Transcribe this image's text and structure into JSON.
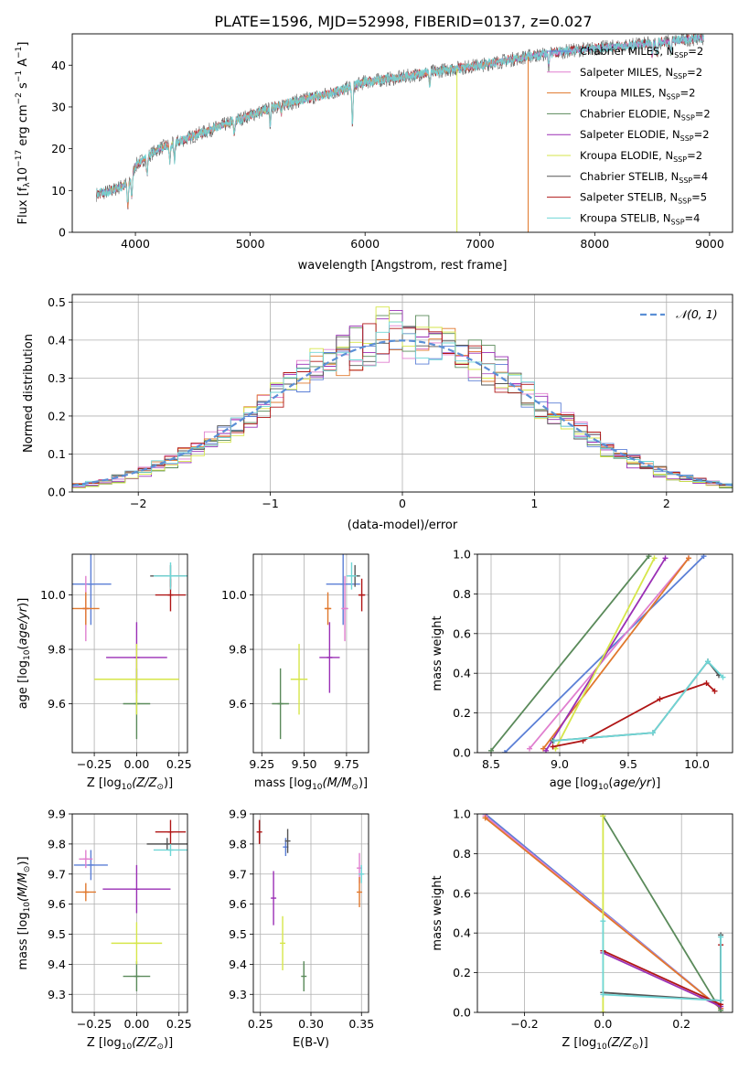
{
  "figure_title": "PLATE=1596, MJD=52998, FIBERID=0137, z=0.027",
  "colors": {
    "Chabrier MILES": "#5b7fd6",
    "Salpeter MILES": "#e07fcf",
    "Kroupa MILES": "#e0782d",
    "Chabrier ELODIE": "#5a8a5a",
    "Salpeter ELODIE": "#9a2fb5",
    "Kroupa ELODIE": "#d6e64a",
    "Chabrier STELIB": "#555555",
    "Salpeter STELIB": "#b01616",
    "Kroupa STELIB": "#6fd6d6",
    "normal": "#5b8fd6"
  },
  "chart_data": [
    {
      "id": "spectrum",
      "type": "line",
      "xlabel": "wavelength [Angstrom, rest frame]",
      "ylabel_parts": [
        "Flux [f",
        "λ",
        "10",
        "−17",
        " erg cm",
        "−2",
        " s",
        "−1",
        " A",
        "−1",
        "]"
      ],
      "xlim": [
        3450,
        9200
      ],
      "ylim": [
        0,
        47.5
      ],
      "xticks": [
        4000,
        5000,
        6000,
        7000,
        8000,
        9000
      ],
      "yticks": [
        0,
        10,
        20,
        30,
        40
      ],
      "legend_position": "right",
      "legend": [
        {
          "name": "Chabrier MILES, N",
          "sub": "SSP",
          "tail": "=2",
          "color_key": "Chabrier MILES"
        },
        {
          "name": "Salpeter MILES, N",
          "sub": "SSP",
          "tail": "=2",
          "color_key": "Salpeter MILES"
        },
        {
          "name": "Kroupa MILES, N",
          "sub": "SSP",
          "tail": "=2",
          "color_key": "Kroupa MILES"
        },
        {
          "name": "Chabrier ELODIE, N",
          "sub": "SSP",
          "tail": "=2",
          "color_key": "Chabrier ELODIE"
        },
        {
          "name": "Salpeter ELODIE, N",
          "sub": "SSP",
          "tail": "=2",
          "color_key": "Salpeter ELODIE"
        },
        {
          "name": "Kroupa ELODIE, N",
          "sub": "SSP",
          "tail": "=2",
          "color_key": "Kroupa ELODIE"
        },
        {
          "name": "Chabrier STELIB, N",
          "sub": "SSP",
          "tail": "=4",
          "color_key": "Chabrier STELIB"
        },
        {
          "name": "Salpeter STELIB, N",
          "sub": "SSP",
          "tail": "=5",
          "color_key": "Salpeter STELIB"
        },
        {
          "name": "Kroupa STELIB, N",
          "sub": "SSP",
          "tail": "=4",
          "color_key": "Kroupa STELIB"
        }
      ],
      "continuum": [
        [
          3650,
          9
        ],
        [
          3800,
          10
        ],
        [
          3950,
          12
        ],
        [
          4000,
          16
        ],
        [
          4200,
          20
        ],
        [
          4500,
          23
        ],
        [
          4800,
          26
        ],
        [
          5000,
          28
        ],
        [
          5200,
          30
        ],
        [
          5500,
          32
        ],
        [
          5800,
          34
        ],
        [
          6000,
          36
        ],
        [
          6300,
          37
        ],
        [
          6600,
          38.5
        ],
        [
          7000,
          40
        ],
        [
          7400,
          42
        ],
        [
          7800,
          43.5
        ],
        [
          8200,
          44.5
        ],
        [
          8600,
          45.5
        ],
        [
          8900,
          46.5
        ]
      ],
      "absorption_lines": [
        [
          3934,
          6
        ],
        [
          3969,
          5
        ],
        [
          4102,
          4
        ],
        [
          4300,
          4
        ],
        [
          4340,
          4
        ],
        [
          4861,
          3
        ],
        [
          5175,
          4
        ],
        [
          5270,
          2
        ],
        [
          5890,
          9
        ],
        [
          6563,
          3
        ],
        [
          7600,
          3
        ],
        [
          8500,
          3
        ],
        [
          8542,
          3
        ],
        [
          8662,
          3
        ]
      ],
      "drops": [
        {
          "color_key": "Kroupa ELODIE",
          "x": 6800
        },
        {
          "color_key": "Kroupa MILES",
          "x": 7420
        }
      ],
      "data_end": {
        "Chabrier MILES": 7400,
        "Kroupa MILES": 7420,
        "Kroupa ELODIE": 6800
      }
    },
    {
      "id": "residual-histogram",
      "type": "bar",
      "xlabel": "(data-model)/error",
      "ylabel": "Normed distribution",
      "xlim": [
        -2.5,
        2.5
      ],
      "ylim": [
        0,
        0.52
      ],
      "xticks": [
        -2,
        -1,
        0,
        1,
        2
      ],
      "yticks": [
        0.0,
        0.1,
        0.2,
        0.3,
        0.4,
        0.5
      ],
      "bin_width": 0.1,
      "normal_curve_label": "𝒩(0, 1)",
      "normal_curve": {
        "mean": 0,
        "sigma": 1
      },
      "legend_position": "top-right"
    },
    {
      "id": "age-vs-Z",
      "type": "scatter",
      "xlabel_pre": "Z [log",
      "xlabel_sub": "10",
      "xlabel_post": "(Z/Z",
      "xlabel_sun": "⊙",
      "xlabel_end": ")]",
      "ylabel": "age  [log10(age/yr)]",
      "xlim": [
        -0.38,
        0.3
      ],
      "ylim": [
        9.42,
        10.15
      ],
      "xticks": [
        -0.25,
        0.0,
        0.25
      ],
      "xtick_labels": [
        "−0.25",
        "0.00",
        "0.25"
      ],
      "yticks": [
        9.6,
        9.8,
        10.0
      ],
      "points": [
        {
          "color_key": "Chabrier MILES",
          "x": -0.27,
          "y": 10.04,
          "xerr": 0.12,
          "yerr": 0.15
        },
        {
          "color_key": "Salpeter MILES",
          "x": -0.3,
          "y": 9.95,
          "xerr": 0.02,
          "yerr": 0.12
        },
        {
          "color_key": "Kroupa MILES",
          "x": -0.3,
          "y": 9.95,
          "xerr": 0.08,
          "yerr": 0.06
        },
        {
          "color_key": "Chabrier ELODIE",
          "x": 0.0,
          "y": 9.6,
          "xerr": 0.08,
          "yerr": 0.13
        },
        {
          "color_key": "Salpeter ELODIE",
          "x": 0.0,
          "y": 9.77,
          "xerr": 0.18,
          "yerr": 0.13
        },
        {
          "color_key": "Kroupa ELODIE",
          "x": 0.0,
          "y": 9.69,
          "xerr": 0.25,
          "yerr": 0.13
        },
        {
          "color_key": "Chabrier STELIB",
          "x": 0.2,
          "y": 10.07,
          "xerr": 0.12,
          "yerr": 0.04
        },
        {
          "color_key": "Salpeter STELIB",
          "x": 0.2,
          "y": 10.0,
          "xerr": 0.09,
          "yerr": 0.06
        },
        {
          "color_key": "Kroupa STELIB",
          "x": 0.2,
          "y": 10.07,
          "xerr": 0.1,
          "yerr": 0.05
        }
      ]
    },
    {
      "id": "age-vs-mass",
      "type": "scatter",
      "xlabel_pre": "mass [log",
      "xlabel_sub": "10",
      "xlabel_post": "(M/M",
      "xlabel_sun": "⊙",
      "xlabel_end": ")]",
      "xlim": [
        9.2,
        9.88
      ],
      "ylim": [
        9.42,
        10.15
      ],
      "xticks": [
        9.25,
        9.5,
        9.75
      ],
      "xtick_labels": [
        "9.25",
        "9.50",
        "9.75"
      ],
      "yticks": [
        9.6,
        9.8,
        10.0
      ],
      "points": [
        {
          "color_key": "Chabrier MILES",
          "x": 9.73,
          "y": 10.04,
          "xerr": 0.1,
          "yerr": 0.15
        },
        {
          "color_key": "Salpeter MILES",
          "x": 9.74,
          "y": 9.95,
          "xerr": 0.02,
          "yerr": 0.12
        },
        {
          "color_key": "Kroupa MILES",
          "x": 9.64,
          "y": 9.95,
          "xerr": 0.02,
          "yerr": 0.06
        },
        {
          "color_key": "Chabrier ELODIE",
          "x": 9.36,
          "y": 9.6,
          "xerr": 0.05,
          "yerr": 0.13
        },
        {
          "color_key": "Salpeter ELODIE",
          "x": 9.65,
          "y": 9.77,
          "xerr": 0.06,
          "yerr": 0.13
        },
        {
          "color_key": "Kroupa ELODIE",
          "x": 9.47,
          "y": 9.69,
          "xerr": 0.05,
          "yerr": 0.13
        },
        {
          "color_key": "Chabrier STELIB",
          "x": 9.8,
          "y": 10.07,
          "xerr": 0.03,
          "yerr": 0.04
        },
        {
          "color_key": "Salpeter STELIB",
          "x": 9.84,
          "y": 10.0,
          "xerr": 0.02,
          "yerr": 0.06
        },
        {
          "color_key": "Kroupa STELIB",
          "x": 9.78,
          "y": 10.07,
          "xerr": 0.03,
          "yerr": 0.05
        }
      ]
    },
    {
      "id": "weight-vs-age",
      "type": "line",
      "xlabel": "age  [log10(age/yr)]",
      "ylabel": "mass weight",
      "xlim": [
        8.4,
        10.26
      ],
      "ylim": [
        0,
        1.0
      ],
      "xticks": [
        8.5,
        9.0,
        9.5,
        10.0
      ],
      "xtick_labels": [
        "8.5",
        "9.0",
        "9.5",
        "10.0"
      ],
      "yticks": [
        0.0,
        0.2,
        0.4,
        0.6,
        0.8,
        1.0
      ],
      "series": [
        {
          "color_key": "Chabrier MILES",
          "points": [
            [
              8.6,
              0.0
            ],
            [
              10.05,
              0.99
            ]
          ]
        },
        {
          "color_key": "Salpeter MILES",
          "points": [
            [
              8.78,
              0.02
            ],
            [
              9.94,
              0.98
            ]
          ]
        },
        {
          "color_key": "Kroupa MILES",
          "points": [
            [
              8.88,
              0.02
            ],
            [
              9.94,
              0.98
            ]
          ]
        },
        {
          "color_key": "Chabrier ELODIE",
          "points": [
            [
              8.5,
              0.01
            ],
            [
              9.65,
              0.99
            ]
          ]
        },
        {
          "color_key": "Salpeter ELODIE",
          "points": [
            [
              8.9,
              0.01
            ],
            [
              9.77,
              0.98
            ]
          ]
        },
        {
          "color_key": "Kroupa ELODIE",
          "points": [
            [
              8.97,
              0.02
            ],
            [
              9.69,
              0.98
            ]
          ]
        },
        {
          "color_key": "Chabrier STELIB",
          "points": [
            [
              8.95,
              0.06
            ],
            [
              9.68,
              0.1
            ],
            [
              10.08,
              0.46
            ],
            [
              10.16,
              0.39
            ]
          ]
        },
        {
          "color_key": "Salpeter STELIB",
          "points": [
            [
              8.95,
              0.03
            ],
            [
              9.17,
              0.06
            ],
            [
              9.73,
              0.27
            ],
            [
              10.07,
              0.35
            ],
            [
              10.13,
              0.31
            ]
          ]
        },
        {
          "color_key": "Kroupa STELIB",
          "points": [
            [
              8.96,
              0.06
            ],
            [
              9.68,
              0.1
            ],
            [
              10.08,
              0.46
            ],
            [
              10.19,
              0.38
            ]
          ]
        }
      ]
    },
    {
      "id": "mass-vs-Z",
      "type": "scatter",
      "xlabel_pre": "Z [log",
      "xlabel_sub": "10",
      "xlabel_post": "(Z/Z",
      "xlabel_sun": "⊙",
      "xlabel_end": ")]",
      "ylabel": "mass [log10(M/Msun)]",
      "xlim": [
        -0.38,
        0.3
      ],
      "ylim": [
        9.24,
        9.9
      ],
      "xticks": [
        -0.25,
        0.0,
        0.25
      ],
      "xtick_labels": [
        "−0.25",
        "0.00",
        "0.25"
      ],
      "yticks": [
        9.3,
        9.4,
        9.5,
        9.6,
        9.7,
        9.8,
        9.9
      ],
      "points": [
        {
          "color_key": "Chabrier MILES",
          "x": -0.27,
          "y": 9.73,
          "xerr": 0.1,
          "yerr": 0.05
        },
        {
          "color_key": "Salpeter MILES",
          "x": -0.3,
          "y": 9.75,
          "xerr": 0.04,
          "yerr": 0.03
        },
        {
          "color_key": "Kroupa MILES",
          "x": -0.3,
          "y": 9.64,
          "xerr": 0.06,
          "yerr": 0.03
        },
        {
          "color_key": "Chabrier ELODIE",
          "x": 0.0,
          "y": 9.36,
          "xerr": 0.08,
          "yerr": 0.05
        },
        {
          "color_key": "Salpeter ELODIE",
          "x": 0.0,
          "y": 9.65,
          "xerr": 0.2,
          "yerr": 0.08
        },
        {
          "color_key": "Kroupa ELODIE",
          "x": 0.0,
          "y": 9.47,
          "xerr": 0.15,
          "yerr": 0.07
        },
        {
          "color_key": "Chabrier STELIB",
          "x": 0.18,
          "y": 9.8,
          "xerr": 0.12,
          "yerr": 0.02
        },
        {
          "color_key": "Salpeter STELIB",
          "x": 0.2,
          "y": 9.84,
          "xerr": 0.09,
          "yerr": 0.04
        },
        {
          "color_key": "Kroupa STELIB",
          "x": 0.2,
          "y": 9.78,
          "xerr": 0.1,
          "yerr": 0.02
        }
      ]
    },
    {
      "id": "mass-vs-ebv",
      "type": "scatter",
      "xlabel": "E(B-V)",
      "xlim": [
        0.243,
        0.357
      ],
      "ylim": [
        9.24,
        9.9
      ],
      "xticks": [
        0.25,
        0.3,
        0.35
      ],
      "xtick_labels": [
        "0.25",
        "0.30",
        "0.35"
      ],
      "yticks": [
        9.3,
        9.4,
        9.5,
        9.6,
        9.7,
        9.8,
        9.9
      ],
      "points": [
        {
          "color_key": "Chabrier MILES",
          "x": 0.275,
          "y": 9.79,
          "xerr": 0.0,
          "yerr": 0.03
        },
        {
          "color_key": "Salpeter MILES",
          "x": 0.348,
          "y": 9.72,
          "xerr": 0.0,
          "yerr": 0.05
        },
        {
          "color_key": "Kroupa MILES",
          "x": 0.348,
          "y": 9.64,
          "xerr": 0.0,
          "yerr": 0.05
        },
        {
          "color_key": "Chabrier ELODIE",
          "x": 0.293,
          "y": 9.36,
          "xerr": 0.0,
          "yerr": 0.05
        },
        {
          "color_key": "Salpeter ELODIE",
          "x": 0.263,
          "y": 9.62,
          "xerr": 0.0,
          "yerr": 0.09
        },
        {
          "color_key": "Kroupa ELODIE",
          "x": 0.272,
          "y": 9.47,
          "xerr": 0.0,
          "yerr": 0.09
        },
        {
          "color_key": "Chabrier STELIB",
          "x": 0.277,
          "y": 9.81,
          "xerr": 0.0,
          "yerr": 0.04
        },
        {
          "color_key": "Salpeter STELIB",
          "x": 0.249,
          "y": 9.84,
          "xerr": 0.0,
          "yerr": 0.04
        },
        {
          "color_key": "Kroupa STELIB",
          "x": 0.35,
          "y": 9.7,
          "xerr": 0.0,
          "yerr": 0.03
        }
      ]
    },
    {
      "id": "weight-vs-Z",
      "type": "line",
      "xlabel_pre": "Z [log",
      "xlabel_sub": "10",
      "xlabel_post": "(Z/Z",
      "xlabel_sun": "⊙",
      "xlabel_end": ")]",
      "ylabel": "mass weight",
      "xlim": [
        -0.32,
        0.33
      ],
      "ylim": [
        0,
        1.0
      ],
      "xticks": [
        -0.2,
        0.0,
        0.2
      ],
      "xtick_labels": [
        "−0.2",
        "0.0",
        "0.2"
      ],
      "yticks": [
        0.0,
        0.2,
        0.4,
        0.6,
        0.8,
        1.0
      ],
      "series": [
        {
          "color_key": "Chabrier MILES",
          "points": [
            [
              -0.3,
              1.0
            ],
            [
              0.3,
              0.02
            ]
          ]
        },
        {
          "color_key": "Salpeter MILES",
          "points": [
            [
              -0.3,
              0.99
            ],
            [
              0.3,
              0.02
            ]
          ]
        },
        {
          "color_key": "Kroupa MILES",
          "points": [
            [
              -0.3,
              0.98
            ],
            [
              0.3,
              0.02
            ]
          ]
        },
        {
          "color_key": "Chabrier ELODIE",
          "points": [
            [
              0.0,
              0.99
            ],
            [
              0.3,
              0.01
            ]
          ]
        },
        {
          "color_key": "Salpeter ELODIE",
          "points": [
            [
              0.0,
              0.3
            ],
            [
              0.3,
              0.03
            ]
          ]
        },
        {
          "color_key": "Kroupa ELODIE",
          "points": [
            [
              0.0,
              0.99
            ],
            [
              0.0,
              0.0
            ]
          ]
        },
        {
          "color_key": "Chabrier STELIB",
          "points": [
            [
              0.0,
              0.1
            ],
            [
              0.3,
              0.06
            ],
            [
              0.3,
              0.39
            ]
          ]
        },
        {
          "color_key": "Salpeter STELIB",
          "points": [
            [
              0.0,
              0.31
            ],
            [
              0.3,
              0.04
            ],
            [
              0.3,
              0.34
            ]
          ]
        },
        {
          "color_key": "Kroupa STELIB",
          "points": [
            [
              0.0,
              0.46
            ],
            [
              0.0,
              0.09
            ],
            [
              0.3,
              0.06
            ],
            [
              0.3,
              0.38
            ]
          ]
        }
      ]
    }
  ]
}
